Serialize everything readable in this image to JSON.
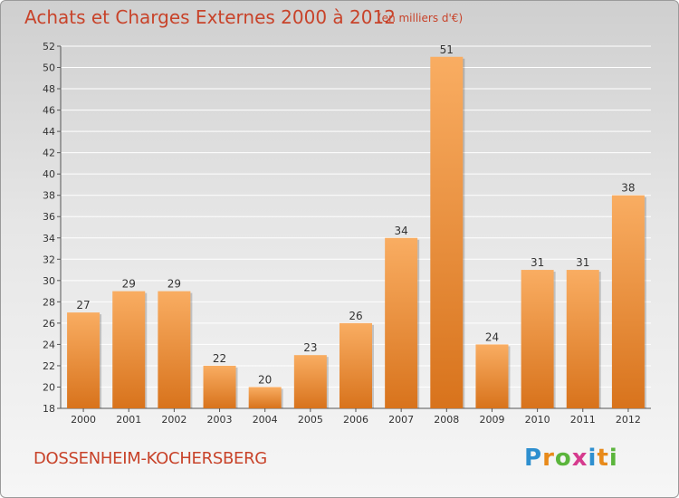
{
  "chart_data": {
    "type": "bar",
    "title": "Achats et Charges Externes 2000 à 2012",
    "subtitle": "(en milliers d'€)",
    "categories": [
      "2000",
      "2001",
      "2002",
      "2003",
      "2004",
      "2005",
      "2006",
      "2007",
      "2008",
      "2009",
      "2010",
      "2011",
      "2012"
    ],
    "values": [
      27,
      29,
      29,
      22,
      20,
      23,
      26,
      34,
      51,
      24,
      31,
      31,
      38
    ],
    "ylim": [
      18,
      52
    ],
    "yticks": [
      18,
      20,
      22,
      24,
      26,
      28,
      30,
      32,
      34,
      36,
      38,
      40,
      42,
      44,
      46,
      48,
      50,
      52
    ],
    "xlabel": "",
    "ylabel": "",
    "grid": true
  },
  "place_name": "DOSSENHEIM-KOCHERSBERG",
  "logo": {
    "letters": [
      "P",
      "r",
      "o",
      "x",
      "i",
      "t",
      "i"
    ],
    "colors": [
      "#2e8fcf",
      "#e88a1a",
      "#5bb53c",
      "#d63b8e",
      "#2e8fcf",
      "#e88a1a",
      "#5bb53c"
    ]
  },
  "colors": {
    "bar_light": "#f7a85a",
    "bar_dark": "#d9751f",
    "text": "#c8432a"
  }
}
